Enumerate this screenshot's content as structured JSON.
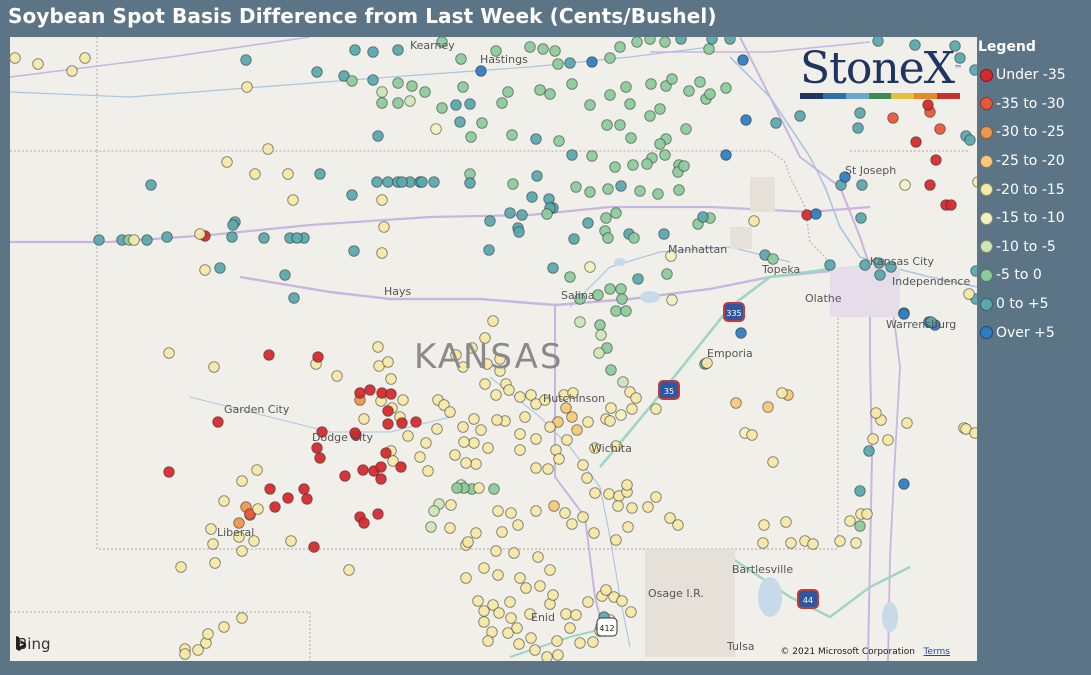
{
  "title": "Soybean Spot Basis Difference from Last Week (Cents/Bushel)",
  "legend": {
    "title": "Legend",
    "items": [
      {
        "label": "Under -35",
        "color": "#d62a2f"
      },
      {
        "label": "-35 to -30",
        "color": "#e8573a"
      },
      {
        "label": "-30 to -25",
        "color": "#f0954e"
      },
      {
        "label": "-25 to -20",
        "color": "#f7c87a"
      },
      {
        "label": "-20 to -15",
        "color": "#f6e8a6"
      },
      {
        "label": "-15 to -10",
        "color": "#f2f2c0"
      },
      {
        "label": "-10 to -5",
        "color": "#cde6b8"
      },
      {
        "label": "-5 to 0",
        "color": "#8ccb9c"
      },
      {
        "label": "0 to +5",
        "color": "#58a9ae"
      },
      {
        "label": "Over +5",
        "color": "#2f7cc2"
      }
    ]
  },
  "logo": {
    "text": "StoneX",
    "tm": "™",
    "bar_colors": [
      "#1f3561",
      "#2f6fa8",
      "#6aa6cf",
      "#3d8a57",
      "#e2c23a",
      "#e58a2b",
      "#c8322d"
    ]
  },
  "map": {
    "state_label": "KANSAS",
    "cities": [
      {
        "name": "Kearney"
      },
      {
        "name": "Hastings"
      },
      {
        "name": "St Joseph"
      },
      {
        "name": "Manhattan"
      },
      {
        "name": "Topeka"
      },
      {
        "name": "Kansas City"
      },
      {
        "name": "Independence"
      },
      {
        "name": "Olathe"
      },
      {
        "name": "Hays"
      },
      {
        "name": "Salina"
      },
      {
        "name": "Warrensburg"
      },
      {
        "name": "Emporia"
      },
      {
        "name": "Hutchinson"
      },
      {
        "name": "Garden City"
      },
      {
        "name": "Dodge City"
      },
      {
        "name": "Wichita"
      },
      {
        "name": "Liberal"
      },
      {
        "name": "Bartlesville"
      },
      {
        "name": "Osage I.R."
      },
      {
        "name": "Enid"
      },
      {
        "name": "Tulsa"
      }
    ],
    "highway_shields": [
      "335",
      "35",
      "44",
      "412"
    ],
    "attribution": "Bing",
    "copyright": "© 2021 Microsoft Corporation",
    "terms": "Terms"
  }
}
